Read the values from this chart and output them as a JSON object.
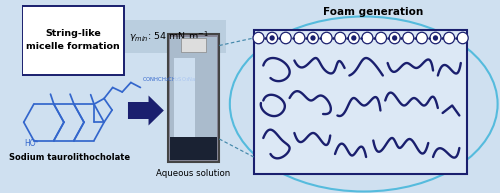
{
  "bg_color": "#cfe0f0",
  "box_label": "String-like\nmicelle formation",
  "foam_label": "Foam generation",
  "mol_label": "Sodium taurolithocholate",
  "aq_label": "Aqueous solution",
  "gamma_text": "$\\gamma_{min}$: 54 mN m$^{-1}$",
  "blue_dark": "#1a1f6e",
  "blue_mid": "#2244aa",
  "blue_struct": "#3366cc",
  "cyan_circle": "#55bbdd",
  "gray_box": "#b8ccdd",
  "photo_bg": "#888899",
  "photo_light": "#ccddee",
  "photo_dark": "#1a2233",
  "worm_color": "#1a1f6e",
  "white": "#ffffff",
  "foam_box_color": "#dce8f5"
}
